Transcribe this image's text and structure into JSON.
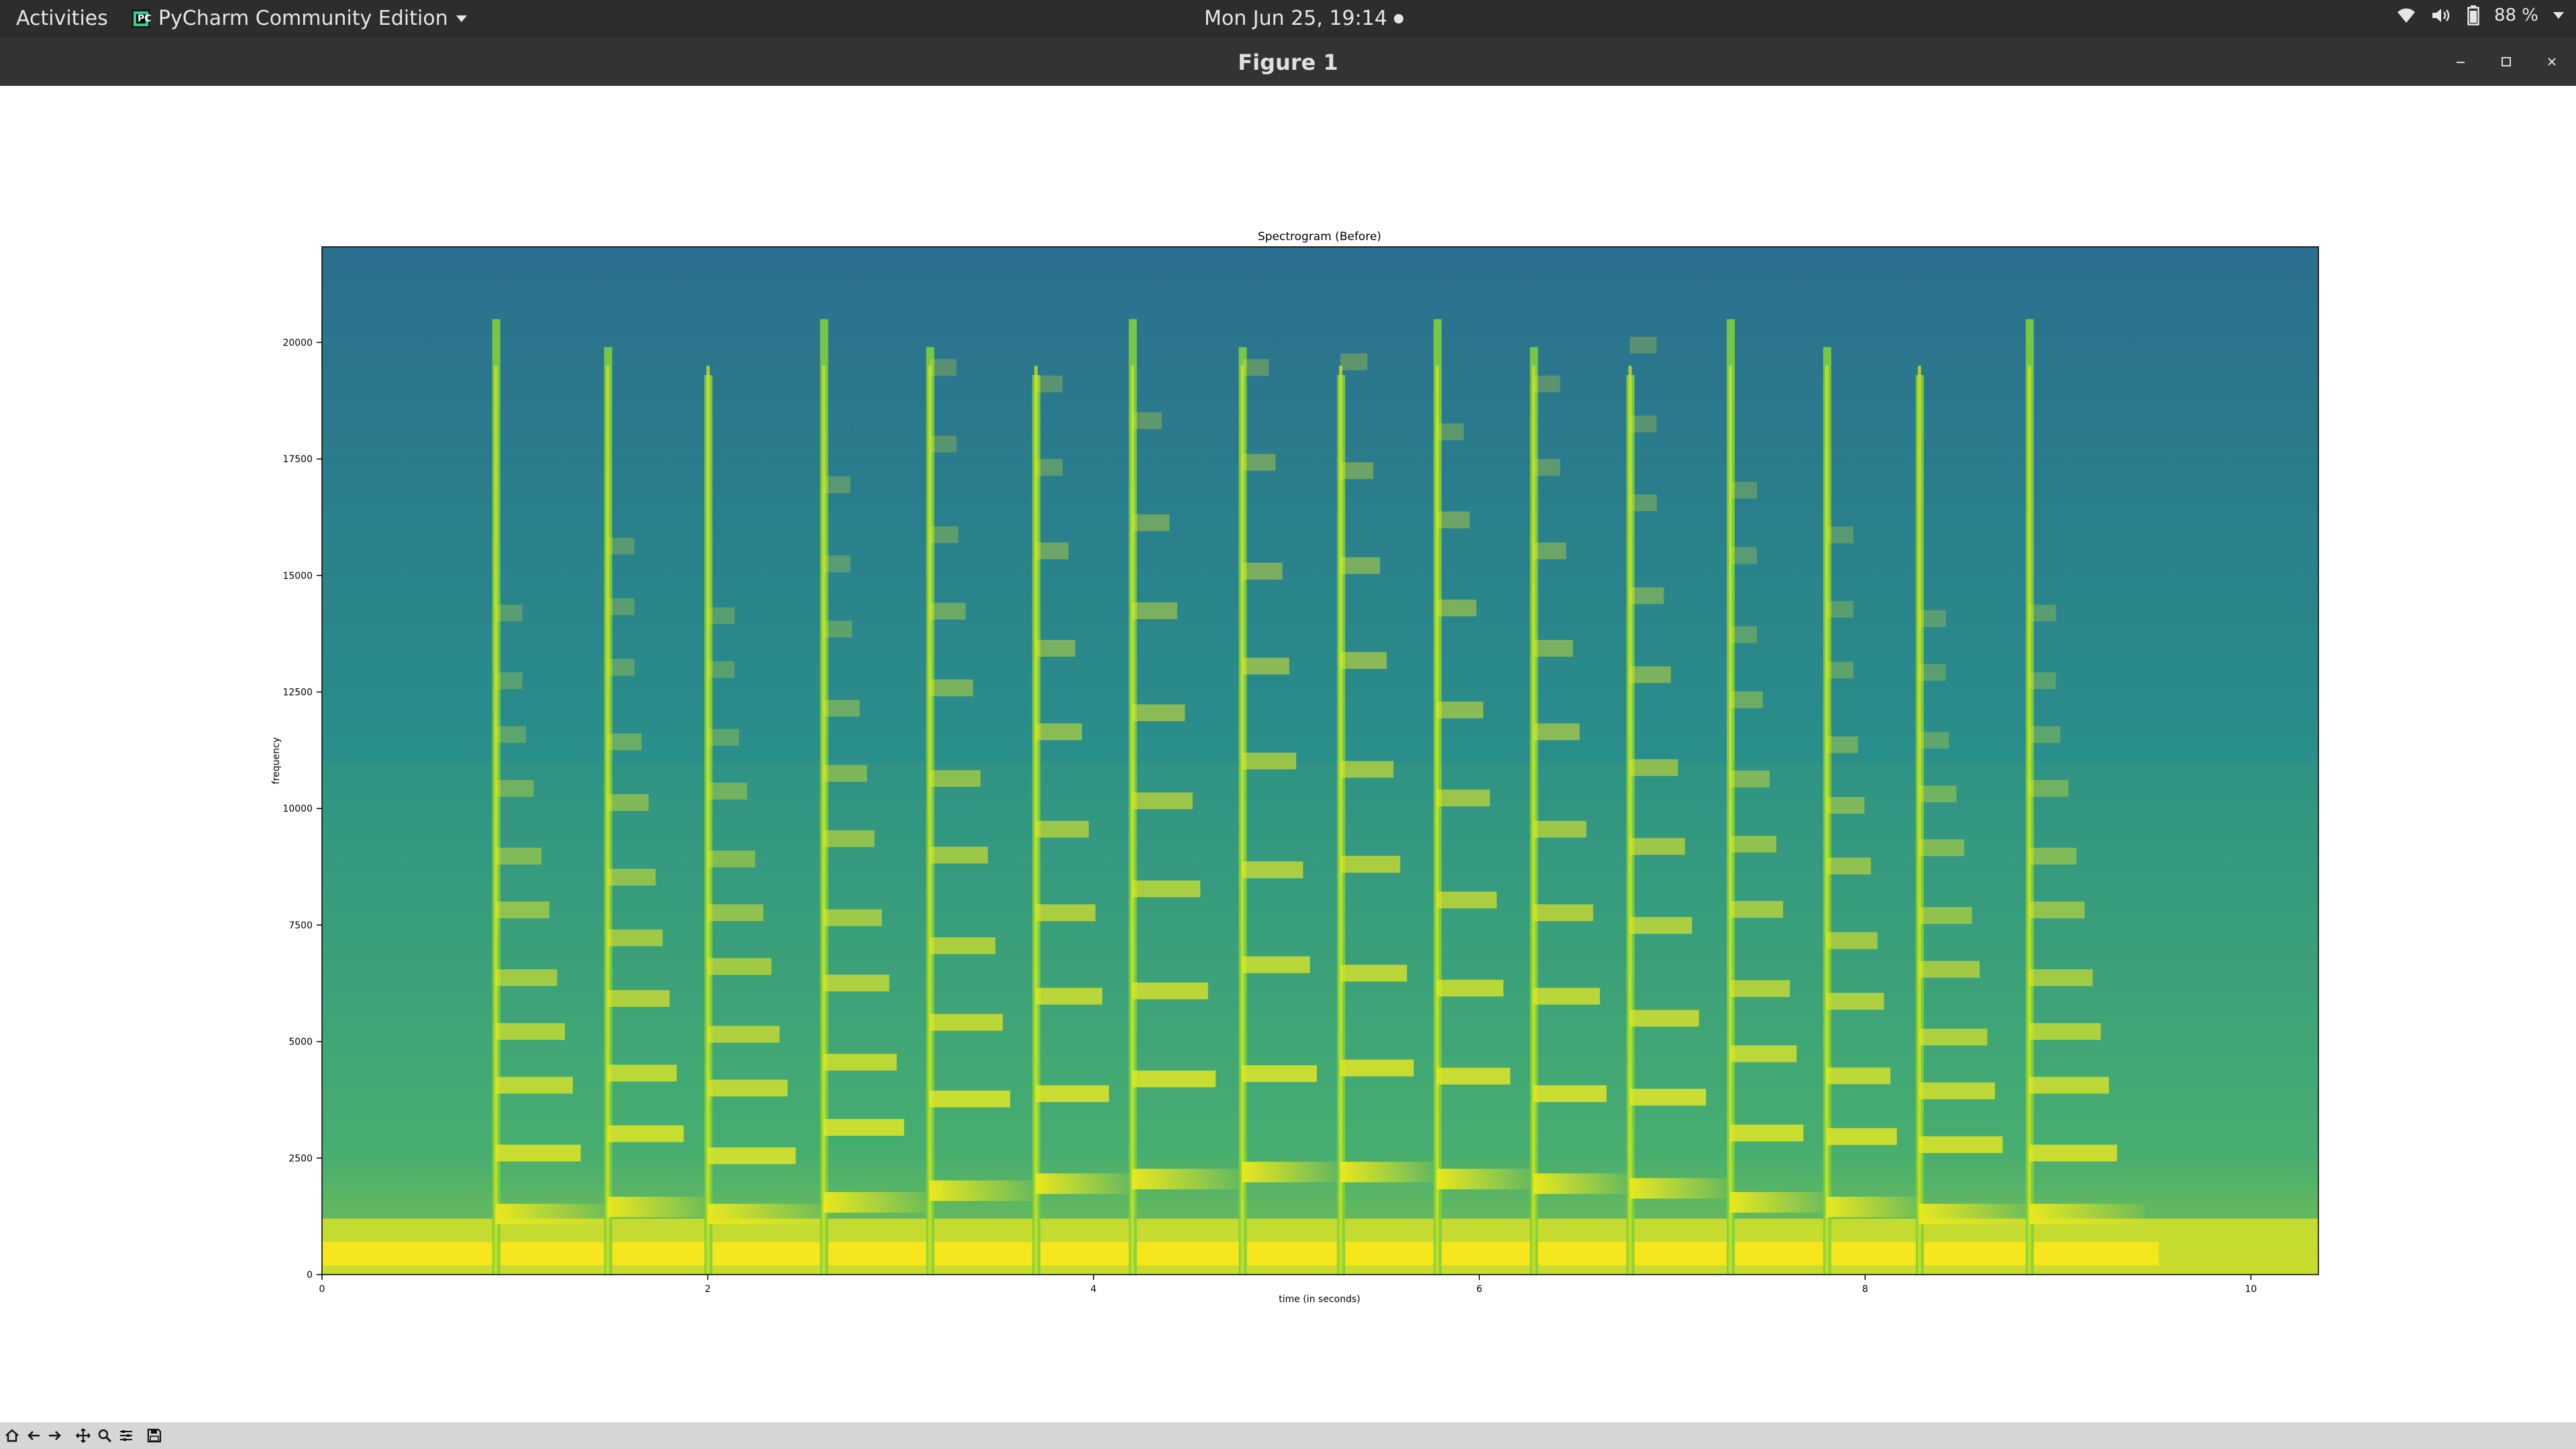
{
  "topbar": {
    "activities": "Activities",
    "app_name": "PyCharm Community Edition",
    "clock": "Mon Jun 25, 19:14",
    "battery": "88 %"
  },
  "window": {
    "title": "Figure 1"
  },
  "toolbar": {
    "buttons": [
      "home-icon",
      "back-icon",
      "forward-icon",
      "pan-icon",
      "zoom-icon",
      "configure-icon",
      "save-icon"
    ]
  },
  "colors": {
    "topbar_bg": "#2d2d2d",
    "titlebar_bg": "#333333",
    "spectrogram_bg": "#2f7891",
    "spectrogram_high": "#f0e81c",
    "spectrogram_mid": "#7ccf4a"
  },
  "chart_data": {
    "type": "heatmap",
    "title": "Spectrogram (Before)",
    "xlabel": "time (in seconds)",
    "ylabel": "frequency",
    "xlim": [
      0,
      10.35
    ],
    "ylim": [
      0,
      22050
    ],
    "xticks": [
      0,
      2,
      4,
      6,
      8,
      10
    ],
    "yticks": [
      0,
      2500,
      5000,
      7500,
      10000,
      12500,
      15000,
      17500,
      20000
    ],
    "note_onsets": [
      0.9,
      1.48,
      2.0,
      2.6,
      3.15,
      3.7,
      4.2,
      4.77,
      5.28,
      5.78,
      6.28,
      6.78,
      7.3,
      7.8,
      8.28,
      8.85
    ],
    "fundamental_bands": [
      1300,
      1450,
      1300,
      1550,
      1800,
      1950,
      2050,
      2200,
      2200,
      2050,
      1950,
      1850,
      1550,
      1450,
      1300,
      1300
    ]
  }
}
